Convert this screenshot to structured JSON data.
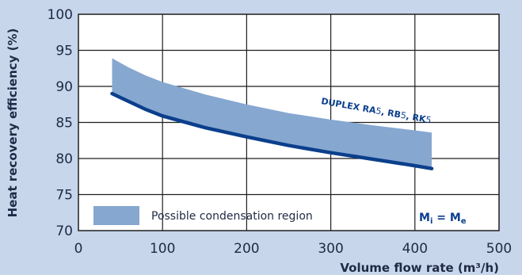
{
  "chart_data": {
    "type": "line",
    "xlabel": "Volume flow rate (m³/h)",
    "ylabel": "Heat recovery efficiency (%)",
    "xlim": [
      0,
      500
    ],
    "ylim": [
      70,
      100
    ],
    "x_ticks": [
      "0",
      "100",
      "200",
      "300",
      "400",
      "500"
    ],
    "y_ticks": [
      "70",
      "75",
      "80",
      "85",
      "90",
      "95",
      "100"
    ],
    "grid": true,
    "series": [
      {
        "name": "DUPLEX RA5, RB5, RK5",
        "x": [
          40,
          60,
          80,
          100,
          150,
          200,
          250,
          300,
          350,
          400,
          420
        ],
        "y": [
          89.0,
          87.9,
          86.8,
          85.9,
          84.3,
          83.0,
          81.8,
          80.8,
          79.9,
          79.0,
          78.6
        ]
      }
    ],
    "band": {
      "name": "Possible condensation region",
      "x": [
        40,
        60,
        80,
        100,
        150,
        200,
        250,
        300,
        350,
        400,
        420
      ],
      "y_lower": [
        89.0,
        87.9,
        86.8,
        85.9,
        84.3,
        83.0,
        81.8,
        80.8,
        79.9,
        79.0,
        78.6
      ],
      "y_upper": [
        93.9,
        92.6,
        91.5,
        90.6,
        88.9,
        87.5,
        86.3,
        85.4,
        84.6,
        83.9,
        83.6
      ]
    },
    "series_label": {
      "prefix": "DUPLEX RA",
      "n1": "5",
      "sep1": ", RB",
      "n2": "5",
      "sep2": ", RK",
      "n3": "5"
    },
    "legend": {
      "band_label": "Possible condensation region",
      "formula": {
        "m1": "M",
        "sub1": "i",
        "eq": " = ",
        "m2": "M",
        "sub2": "e"
      }
    },
    "colors": {
      "background": "#c8d6ec",
      "plot_area": "#ffffff",
      "band": "#86a7d0",
      "line": "#0b3f8c",
      "grid": "#1f1f1f"
    }
  }
}
